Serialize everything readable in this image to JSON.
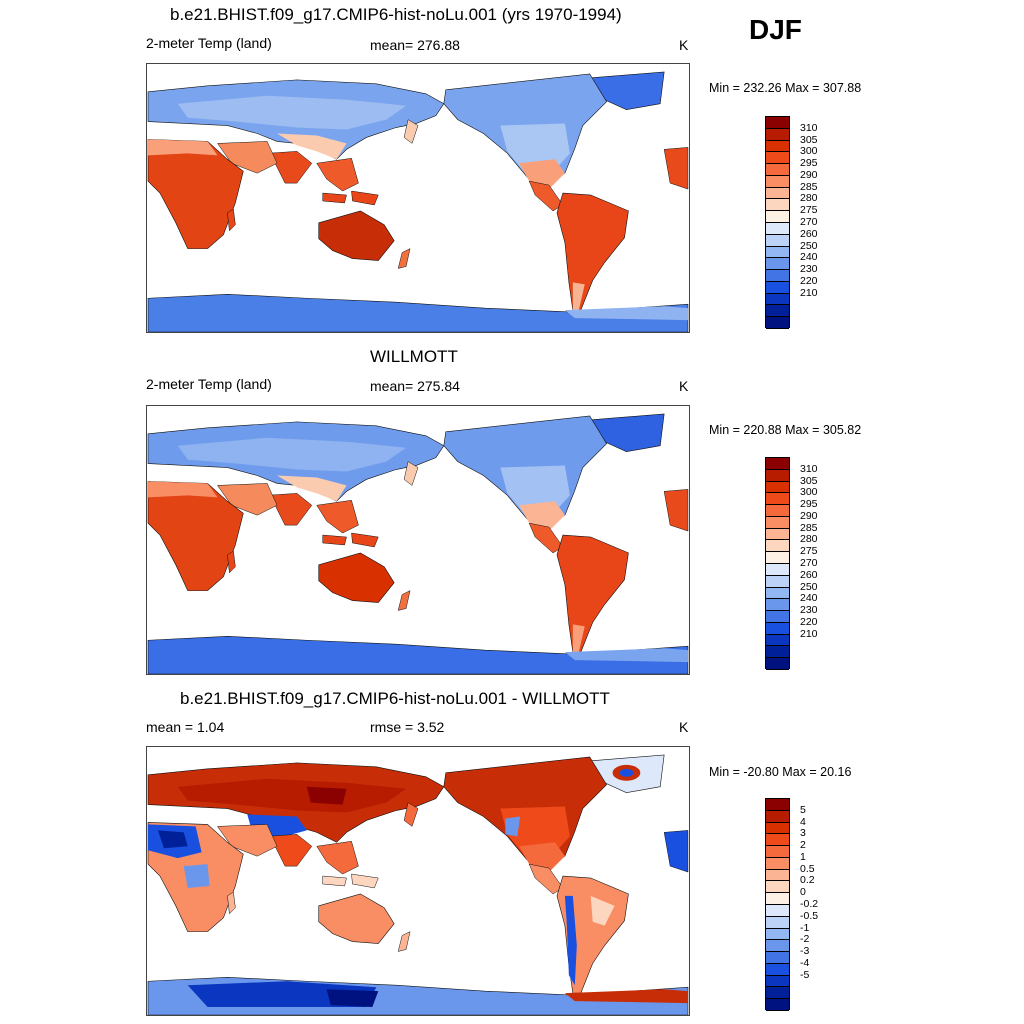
{
  "season": "DJF",
  "panels": [
    {
      "title": "b.e21.BHIST.f09_g17.CMIP6-hist-noLu.001 (yrs 1970-1994)",
      "left": "2-meter Temp (land)",
      "center": "mean= 276.88",
      "units": "K",
      "minmax": "Min = 232.26 Max = 307.88",
      "scale": "abs"
    },
    {
      "title": "WILLMOTT",
      "left": "2-meter Temp (land)",
      "center": "mean= 275.84",
      "units": "K",
      "minmax": "Min = 220.88 Max = 305.82",
      "scale": "abs"
    },
    {
      "title": "b.e21.BHIST.f09_g17.CMIP6-hist-noLu.001 - WILLMOTT",
      "left": "mean =   1.04",
      "center": "rmse =   3.52",
      "units": "K",
      "minmax": "Min = -20.80 Max =  20.16",
      "scale": "diff"
    }
  ],
  "colorbars": {
    "abs": {
      "labels": [
        "310",
        "305",
        "300",
        "295",
        "290",
        "285",
        "280",
        "275",
        "270",
        "260",
        "250",
        "240",
        "230",
        "220",
        "210"
      ],
      "colors": [
        "#8b0000",
        "#b81c00",
        "#d93000",
        "#ee4a1a",
        "#f56a3c",
        "#f98e65",
        "#fbb494",
        "#fdd6c0",
        "#fdf1e6",
        "#dde9fb",
        "#bcd3f7",
        "#93b7f2",
        "#6a97ec",
        "#4274e6",
        "#1a50e0",
        "#0a36c0",
        "#00209a",
        "#001280"
      ]
    },
    "diff": {
      "labels": [
        "5",
        "4",
        "3",
        "2",
        "1",
        "0.5",
        "0.2",
        "0",
        "-0.2",
        "-0.5",
        "-1",
        "-2",
        "-3",
        "-4",
        "-5"
      ],
      "colors": [
        "#8b0000",
        "#b81c00",
        "#d93000",
        "#ee4a1a",
        "#f56a3c",
        "#f98e65",
        "#fbb494",
        "#fdd6c0",
        "#fdf1e6",
        "#dde9fb",
        "#bcd3f7",
        "#93b7f2",
        "#6a97ec",
        "#4274e6",
        "#1a50e0",
        "#0a36c0",
        "#00209a",
        "#001280"
      ]
    }
  }
}
